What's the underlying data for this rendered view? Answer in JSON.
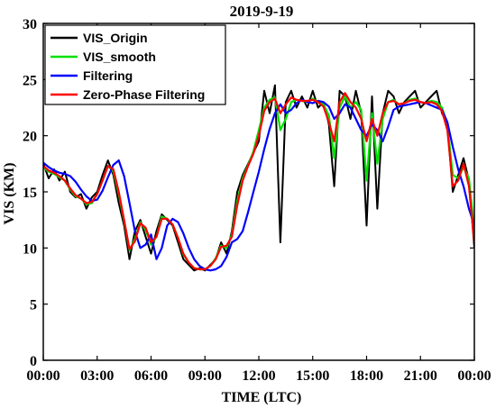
{
  "chart_data": {
    "type": "line",
    "title": "2019-9-19",
    "xlabel": "TIME (LTC)",
    "ylabel": "VIS (KM)",
    "xlim": [
      0,
      24
    ],
    "ylim": [
      0,
      30
    ],
    "xticks": [
      0,
      3,
      6,
      9,
      12,
      15,
      18,
      21,
      24
    ],
    "xtick_labels": [
      "00:00",
      "03:00",
      "06:00",
      "09:00",
      "12:00",
      "15:00",
      "18:00",
      "21:00",
      "00:00"
    ],
    "yticks": [
      0,
      5,
      10,
      15,
      20,
      25,
      30
    ],
    "ytick_labels": [
      "0",
      "5",
      "10",
      "15",
      "20",
      "25",
      "30"
    ],
    "grid": false,
    "legend_position": "top-left",
    "series": [
      {
        "name": "VIS_Origin",
        "color": "#000000",
        "x": [
          0,
          0.3,
          0.6,
          0.9,
          1.2,
          1.5,
          1.8,
          2.1,
          2.4,
          2.7,
          3.0,
          3.3,
          3.6,
          3.9,
          4.2,
          4.5,
          4.8,
          5.1,
          5.4,
          5.7,
          6.0,
          6.3,
          6.6,
          6.9,
          7.2,
          7.5,
          7.8,
          8.1,
          8.4,
          8.7,
          9.0,
          9.3,
          9.6,
          9.9,
          10.2,
          10.5,
          10.8,
          11.1,
          11.4,
          11.7,
          12.0,
          12.3,
          12.6,
          12.9,
          13.2,
          13.5,
          13.8,
          14.1,
          14.4,
          14.7,
          15.0,
          15.3,
          15.6,
          15.9,
          16.2,
          16.5,
          16.8,
          17.1,
          17.4,
          17.7,
          18.0,
          18.3,
          18.6,
          18.9,
          19.2,
          19.5,
          19.8,
          20.1,
          20.4,
          20.7,
          21.0,
          21.3,
          21.6,
          21.9,
          22.2,
          22.5,
          22.8,
          23.1,
          23.4,
          23.7,
          24.0
        ],
        "values": [
          17.5,
          16.2,
          17.0,
          16.0,
          16.8,
          15.0,
          14.5,
          14.8,
          13.5,
          14.5,
          15.0,
          16.5,
          17.8,
          16.5,
          14.0,
          12.0,
          9.0,
          11.5,
          12.5,
          11.0,
          9.5,
          11.5,
          13.0,
          12.5,
          12.0,
          10.5,
          9.0,
          8.5,
          8.0,
          8.2,
          8.0,
          8.5,
          9.0,
          10.5,
          9.5,
          11.5,
          15.0,
          16.5,
          17.5,
          18.5,
          19.5,
          24.0,
          22.0,
          24.5,
          10.5,
          23.0,
          24.0,
          22.5,
          23.5,
          22.5,
          24.0,
          22.5,
          23.0,
          21.0,
          15.5,
          24.0,
          23.5,
          21.5,
          24.0,
          22.0,
          12.0,
          23.5,
          13.5,
          22.0,
          24.0,
          23.5,
          22.0,
          23.0,
          23.5,
          24.0,
          22.5,
          23.0,
          23.5,
          24.0,
          22.0,
          21.0,
          15.0,
          16.5,
          18.0,
          16.0,
          10.0
        ]
      },
      {
        "name": "VIS_smooth",
        "color": "#00e000",
        "x": [
          0,
          0.3,
          0.6,
          0.9,
          1.2,
          1.5,
          1.8,
          2.1,
          2.4,
          2.7,
          3.0,
          3.3,
          3.6,
          3.9,
          4.2,
          4.5,
          4.8,
          5.1,
          5.4,
          5.7,
          6.0,
          6.3,
          6.6,
          6.9,
          7.2,
          7.5,
          7.8,
          8.1,
          8.4,
          8.7,
          9.0,
          9.3,
          9.6,
          9.9,
          10.2,
          10.5,
          10.8,
          11.1,
          11.4,
          11.7,
          12.0,
          12.3,
          12.6,
          12.9,
          13.2,
          13.5,
          13.8,
          14.1,
          14.4,
          14.7,
          15.0,
          15.3,
          15.6,
          15.9,
          16.2,
          16.5,
          16.8,
          17.1,
          17.4,
          17.7,
          18.0,
          18.3,
          18.6,
          18.9,
          19.2,
          19.5,
          19.8,
          20.1,
          20.4,
          20.7,
          21.0,
          21.3,
          21.6,
          21.9,
          22.2,
          22.5,
          22.8,
          23.1,
          23.4,
          23.7,
          24.0
        ],
        "values": [
          17.2,
          16.8,
          16.6,
          16.3,
          16.0,
          15.2,
          14.6,
          14.4,
          13.9,
          14.0,
          14.8,
          16.0,
          17.3,
          16.8,
          14.8,
          12.4,
          9.8,
          10.8,
          12.3,
          11.6,
          10.3,
          11.0,
          12.8,
          12.6,
          12.1,
          10.9,
          9.4,
          8.7,
          8.2,
          8.1,
          8.1,
          8.4,
          9.1,
          10.2,
          10.0,
          11.2,
          14.2,
          16.2,
          17.4,
          18.6,
          20.5,
          22.5,
          23.2,
          23.4,
          20.5,
          21.5,
          23.0,
          23.2,
          23.1,
          23.0,
          23.3,
          23.0,
          22.8,
          21.8,
          18.0,
          22.5,
          23.5,
          22.5,
          23.0,
          22.3,
          16.0,
          22.0,
          17.5,
          21.5,
          23.0,
          23.2,
          22.8,
          22.9,
          23.2,
          23.3,
          23.0,
          22.9,
          23.1,
          23.0,
          22.5,
          21.0,
          16.5,
          16.2,
          17.2,
          16.2,
          11.5
        ]
      },
      {
        "name": "Filtering",
        "color": "#0000ff",
        "x": [
          0,
          0.3,
          0.6,
          0.9,
          1.2,
          1.5,
          1.8,
          2.1,
          2.4,
          2.7,
          3.0,
          3.3,
          3.6,
          3.9,
          4.2,
          4.5,
          4.8,
          5.1,
          5.4,
          5.7,
          6.0,
          6.3,
          6.6,
          6.9,
          7.2,
          7.5,
          7.8,
          8.1,
          8.4,
          8.7,
          9.0,
          9.3,
          9.6,
          9.9,
          10.2,
          10.5,
          10.8,
          11.1,
          11.4,
          11.7,
          12.0,
          12.3,
          12.6,
          12.9,
          13.2,
          13.5,
          13.8,
          14.1,
          14.4,
          14.7,
          15.0,
          15.3,
          15.6,
          15.9,
          16.2,
          16.5,
          16.8,
          17.1,
          17.4,
          17.7,
          18.0,
          18.3,
          18.6,
          18.9,
          19.2,
          19.5,
          19.8,
          20.1,
          20.4,
          20.7,
          21.0,
          21.3,
          21.6,
          21.9,
          22.2,
          22.5,
          22.8,
          23.1,
          23.4,
          23.7,
          24.0
        ],
        "values": [
          17.6,
          17.2,
          16.9,
          16.7,
          16.6,
          16.4,
          15.9,
          15.2,
          14.6,
          14.2,
          14.3,
          15.1,
          16.3,
          17.4,
          17.8,
          16.4,
          14.0,
          11.5,
          10.0,
          10.3,
          11.2,
          9.0,
          10.0,
          12.0,
          12.6,
          12.3,
          11.3,
          10.0,
          9.0,
          8.4,
          8.1,
          8.0,
          8.1,
          8.4,
          9.2,
          10.5,
          10.8,
          11.5,
          13.2,
          15.0,
          16.8,
          18.8,
          20.6,
          22.0,
          22.8,
          22.0,
          22.3,
          22.9,
          23.2,
          23.0,
          22.9,
          23.1,
          23.0,
          22.6,
          21.5,
          22.0,
          22.8,
          22.5,
          21.5,
          20.5,
          20.0,
          21.0,
          20.5,
          19.5,
          20.8,
          22.3,
          22.6,
          22.7,
          22.8,
          22.9,
          23.0,
          22.9,
          22.7,
          22.5,
          22.3,
          21.2,
          19.0,
          17.0,
          15.5,
          13.5,
          12.0
        ]
      },
      {
        "name": "Zero-Phase Filtering",
        "color": "#ff0000",
        "x": [
          0,
          0.3,
          0.6,
          0.9,
          1.2,
          1.5,
          1.8,
          2.1,
          2.4,
          2.7,
          3.0,
          3.3,
          3.6,
          3.9,
          4.2,
          4.5,
          4.8,
          5.1,
          5.4,
          5.7,
          6.0,
          6.3,
          6.6,
          6.9,
          7.2,
          7.5,
          7.8,
          8.1,
          8.4,
          8.7,
          9.0,
          9.3,
          9.6,
          9.9,
          10.2,
          10.5,
          10.8,
          11.1,
          11.4,
          11.7,
          12.0,
          12.3,
          12.6,
          12.9,
          13.2,
          13.5,
          13.8,
          14.1,
          14.4,
          14.7,
          15.0,
          15.3,
          15.6,
          15.9,
          16.2,
          16.5,
          16.8,
          17.1,
          17.4,
          17.7,
          18.0,
          18.3,
          18.6,
          18.9,
          19.2,
          19.5,
          19.8,
          20.1,
          20.4,
          20.7,
          21.0,
          21.3,
          21.6,
          21.9,
          22.2,
          22.5,
          22.8,
          23.1,
          23.4,
          23.7,
          24.0
        ],
        "values": [
          17.3,
          16.9,
          16.7,
          16.4,
          16.0,
          15.3,
          14.7,
          14.4,
          14.0,
          14.1,
          14.8,
          16.0,
          17.3,
          17.0,
          15.0,
          12.5,
          9.9,
          10.6,
          12.2,
          11.8,
          10.5,
          11.0,
          12.6,
          12.6,
          12.1,
          10.9,
          9.5,
          8.7,
          8.2,
          8.1,
          8.1,
          8.4,
          9.0,
          10.1,
          10.2,
          11.0,
          13.8,
          16.0,
          17.3,
          18.4,
          20.0,
          22.2,
          23.0,
          23.3,
          22.0,
          22.8,
          23.4,
          23.2,
          23.1,
          23.1,
          23.2,
          23.0,
          22.6,
          21.2,
          19.5,
          23.0,
          23.8,
          23.0,
          22.5,
          21.5,
          19.5,
          21.5,
          20.0,
          22.0,
          23.0,
          23.1,
          22.8,
          22.9,
          23.1,
          23.2,
          23.0,
          22.9,
          23.0,
          22.8,
          22.2,
          20.5,
          15.5,
          16.0,
          17.5,
          15.5,
          10.5
        ]
      }
    ]
  }
}
